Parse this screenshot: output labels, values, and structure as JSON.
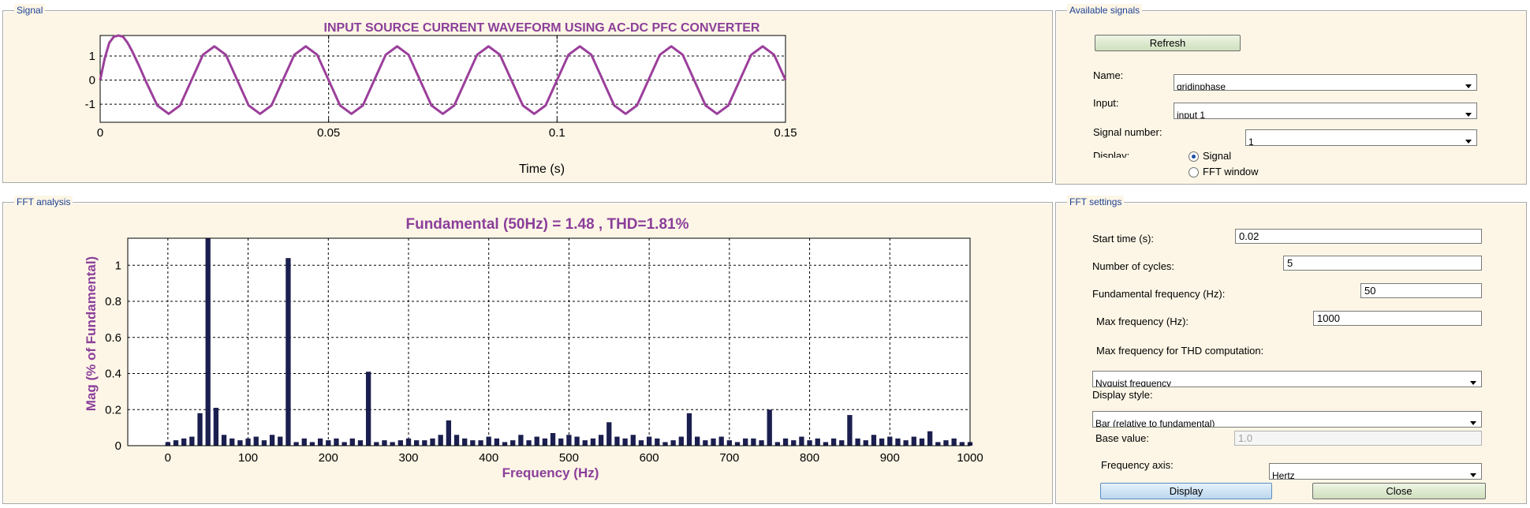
{
  "signal_panel": {
    "legend": "Signal",
    "chart_data": {
      "type": "line",
      "title": "INPUT SOURCE CURRENT WAVEFORM USING AC-DC PFC CONVERTER",
      "xlabel": "Time (s)",
      "ylabel": "",
      "xlim": [
        0,
        0.15
      ],
      "ylim": [
        -1.75,
        1.85
      ],
      "xticks": [
        "0",
        "0.05",
        "0.1",
        "0.15"
      ],
      "yticks": [
        "1",
        "0",
        "-1"
      ],
      "grid": true,
      "series": [
        {
          "color": "#9b3f9b",
          "x": [
            0,
            0.001,
            0.002,
            0.003,
            0.004,
            0.005,
            0.006,
            0.007,
            0.0085,
            0.01,
            0.0125,
            0.015,
            0.0175,
            0.02,
            0.0225,
            0.025,
            0.0275,
            0.03,
            0.0325,
            0.035,
            0.0375,
            0.04,
            0.0425,
            0.045,
            0.0475,
            0.05,
            0.0525,
            0.055,
            0.0575,
            0.06,
            0.0625,
            0.065,
            0.0675,
            0.07,
            0.0725,
            0.075,
            0.0775,
            0.08,
            0.0825,
            0.085,
            0.0875,
            0.09,
            0.0925,
            0.095,
            0.0975,
            0.1,
            0.1025,
            0.105,
            0.1075,
            0.11,
            0.1125,
            0.115,
            0.1175,
            0.12,
            0.1225,
            0.125,
            0.1275,
            0.13,
            0.1325,
            0.135,
            0.1375,
            0.14,
            0.1425,
            0.145,
            0.1475,
            0.15
          ],
          "y": [
            0,
            0.9,
            1.55,
            1.8,
            1.85,
            1.8,
            1.55,
            1.2,
            0.6,
            -0.05,
            -1.05,
            -1.4,
            -1.05,
            0,
            1.05,
            1.4,
            1.05,
            0,
            -1.05,
            -1.4,
            -1.05,
            0,
            1.05,
            1.4,
            1.05,
            0,
            -1.05,
            -1.4,
            -1.05,
            0,
            1.05,
            1.4,
            1.05,
            0,
            -1.05,
            -1.4,
            -1.05,
            0,
            1.05,
            1.4,
            1.05,
            0,
            -1.05,
            -1.4,
            -1.05,
            0,
            1.05,
            1.4,
            1.05,
            0,
            -1.05,
            -1.4,
            -1.05,
            0,
            1.05,
            1.4,
            1.05,
            0,
            -1.05,
            -1.4,
            -1.05,
            0,
            1.05,
            1.4,
            1.05,
            0
          ]
        }
      ]
    }
  },
  "fft_panel": {
    "legend": "FFT analysis",
    "chart_data": {
      "type": "bar",
      "title": "Fundamental (50Hz) = 1.48 , THD=1.81%",
      "xlabel": "Frequency (Hz)",
      "ylabel": "Mag (% of Fundamental)",
      "xlim": [
        -50,
        1000
      ],
      "ylim": [
        0,
        1.15
      ],
      "xticks": [
        "0",
        "100",
        "200",
        "300",
        "400",
        "500",
        "600",
        "700",
        "800",
        "900",
        "1000"
      ],
      "yticks": [
        "1",
        "0.8",
        "0.6",
        "0.4",
        "0.2",
        "0"
      ],
      "grid": true,
      "bar_color": "#1b1f4f",
      "title_color": "#8b3f9a",
      "x": [
        0,
        10,
        20,
        30,
        40,
        50,
        60,
        70,
        80,
        90,
        100,
        110,
        120,
        130,
        140,
        150,
        160,
        170,
        180,
        190,
        200,
        210,
        220,
        230,
        240,
        250,
        260,
        270,
        280,
        290,
        300,
        310,
        320,
        330,
        340,
        350,
        360,
        370,
        380,
        390,
        400,
        410,
        420,
        430,
        440,
        450,
        460,
        470,
        480,
        490,
        500,
        510,
        520,
        530,
        540,
        550,
        560,
        570,
        580,
        590,
        600,
        610,
        620,
        630,
        640,
        650,
        660,
        670,
        680,
        690,
        700,
        710,
        720,
        730,
        740,
        750,
        760,
        770,
        780,
        790,
        800,
        810,
        820,
        830,
        840,
        850,
        860,
        870,
        880,
        890,
        900,
        910,
        920,
        930,
        940,
        950,
        960,
        970,
        980,
        990,
        1000
      ],
      "values": [
        0.02,
        0.03,
        0.04,
        0.05,
        0.18,
        1.15,
        0.21,
        0.06,
        0.04,
        0.03,
        0.04,
        0.05,
        0.03,
        0.06,
        0.05,
        1.04,
        0.02,
        0.04,
        0.02,
        0.04,
        0.03,
        0.04,
        0.02,
        0.04,
        0.03,
        0.41,
        0.02,
        0.03,
        0.02,
        0.03,
        0.04,
        0.03,
        0.03,
        0.04,
        0.06,
        0.14,
        0.06,
        0.04,
        0.03,
        0.03,
        0.05,
        0.04,
        0.02,
        0.03,
        0.06,
        0.03,
        0.05,
        0.04,
        0.07,
        0.04,
        0.06,
        0.05,
        0.03,
        0.04,
        0.06,
        0.13,
        0.05,
        0.04,
        0.06,
        0.03,
        0.05,
        0.04,
        0.02,
        0.03,
        0.05,
        0.18,
        0.05,
        0.03,
        0.04,
        0.05,
        0.03,
        0.02,
        0.04,
        0.04,
        0.03,
        0.2,
        0.02,
        0.04,
        0.03,
        0.05,
        0.03,
        0.04,
        0.02,
        0.04,
        0.03,
        0.17,
        0.04,
        0.03,
        0.06,
        0.04,
        0.05,
        0.04,
        0.03,
        0.05,
        0.04,
        0.08,
        0.02,
        0.03,
        0.04,
        0.02,
        0.02
      ]
    }
  },
  "available_signals": {
    "legend": "Available signals",
    "refresh_label": "Refresh",
    "name_label": "Name:",
    "name_value": "gridinphase",
    "input_label": "Input:",
    "input_value": "input 1",
    "signal_number_label": "Signal number:",
    "signal_number_value": "1",
    "display_label": "Display:",
    "display_options": [
      "Signal",
      "FFT window"
    ]
  },
  "fft_settings": {
    "legend": "FFT settings",
    "start_time_label": "Start time (s):",
    "start_time_value": "0.02",
    "cycles_label": "Number of cycles:",
    "cycles_value": "5",
    "fund_freq_label": "Fundamental frequency (Hz):",
    "fund_freq_value": "50",
    "max_freq_label": "Max frequency (Hz):",
    "max_freq_value": "1000",
    "thd_label": "Max frequency for THD computation:",
    "thd_value": "Nyquist frequency",
    "display_style_label": "Display style:",
    "display_style_value": "Bar (relative to fundamental)",
    "base_value_label": "Base value:",
    "base_value_value": "1.0",
    "freq_axis_label": "Frequency axis:",
    "freq_axis_value": "Hertz",
    "display_button": "Display",
    "close_button": "Close"
  }
}
